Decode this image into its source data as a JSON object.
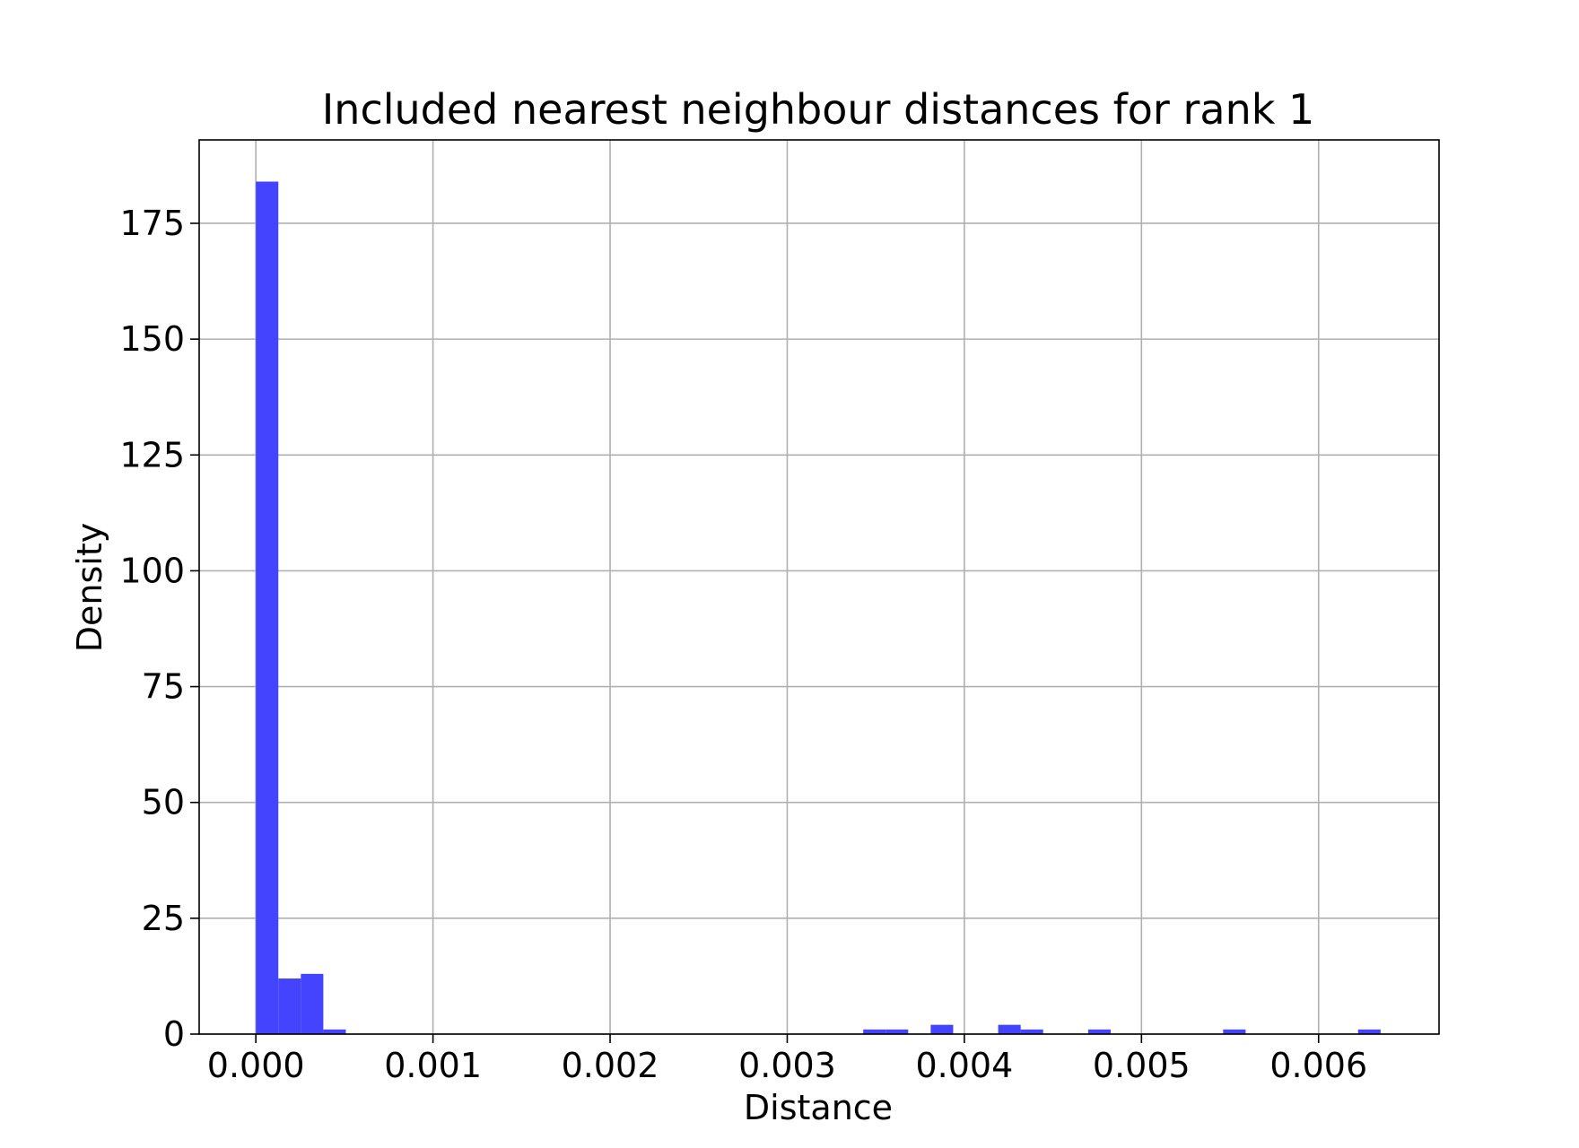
{
  "chart_data": {
    "type": "bar",
    "title": "Included nearest neighbour distances for rank 1",
    "xlabel": "Distance",
    "ylabel": "Density",
    "xlim": [
      -0.00032,
      0.00668
    ],
    "ylim": [
      0,
      193
    ],
    "grid": true,
    "bar_color": "#4444ff",
    "xticks": [
      0.0,
      0.001,
      0.002,
      0.003,
      0.004,
      0.005,
      0.006
    ],
    "xtick_labels": [
      "0.000",
      "0.001",
      "0.002",
      "0.003",
      "0.004",
      "0.005",
      "0.006"
    ],
    "yticks": [
      0,
      25,
      50,
      75,
      100,
      125,
      150,
      175
    ],
    "ytick_labels": [
      "0",
      "25",
      "50",
      "75",
      "100",
      "125",
      "150",
      "175"
    ],
    "bin_width": 0.000127,
    "bins": [
      {
        "x": 0.0,
        "value": 184
      },
      {
        "x": 0.000127,
        "value": 12
      },
      {
        "x": 0.000254,
        "value": 13
      },
      {
        "x": 0.000381,
        "value": 1
      },
      {
        "x": 0.003429,
        "value": 1
      },
      {
        "x": 0.003556,
        "value": 1
      },
      {
        "x": 0.00381,
        "value": 2
      },
      {
        "x": 0.004191,
        "value": 2
      },
      {
        "x": 0.004318,
        "value": 1
      },
      {
        "x": 0.004699,
        "value": 1
      },
      {
        "x": 0.005461,
        "value": 1
      },
      {
        "x": 0.006223,
        "value": 1
      }
    ]
  }
}
